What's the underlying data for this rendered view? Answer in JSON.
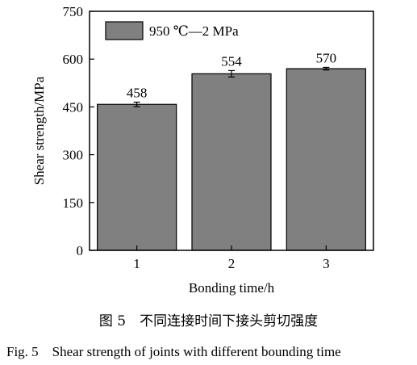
{
  "chart_data": {
    "type": "bar",
    "categories": [
      "1",
      "2",
      "3"
    ],
    "values": [
      458,
      554,
      570
    ],
    "errors": [
      7,
      10,
      4
    ],
    "data_labels": [
      "458",
      "554",
      "570"
    ],
    "xlabel": "Bonding time/h",
    "ylabel": "Shear strength/MPa",
    "ylim": [
      0,
      750
    ],
    "yticks": [
      0,
      150,
      300,
      450,
      600,
      750
    ],
    "legend": "950 ℃—2 MPa",
    "legend_position": "top-left",
    "grid": false,
    "bar_color": "#808080"
  },
  "caption": {
    "zh": "图 5　不同连接时间下接头剪切强度",
    "en": "Fig. 5　Shear strength of joints with different bounding time"
  }
}
